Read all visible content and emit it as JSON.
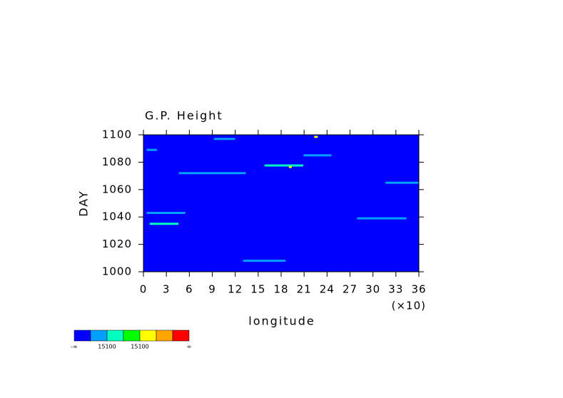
{
  "chart_data": {
    "type": "heatmap",
    "title": "G.P. Height",
    "x_label": "longitude",
    "x_multiplier": "(×10)",
    "y_label": "DAY",
    "background": "#0000ff",
    "xlim": [
      0,
      36
    ],
    "xticks": [
      0,
      3,
      6,
      9,
      12,
      15,
      18,
      21,
      24,
      27,
      30,
      33,
      36
    ],
    "ylim": [
      1000,
      1100
    ],
    "yticks": [
      1000,
      1020,
      1040,
      1060,
      1080,
      1100
    ],
    "colorbar": {
      "colors": [
        "#0000ff",
        "#00a0ff",
        "#00ffc0",
        "#00ff00",
        "#ffff00",
        "#ffa500",
        "#ff0000"
      ],
      "labels": [
        "-∞",
        null,
        "15100",
        null,
        "15100",
        null,
        null,
        "∞"
      ]
    },
    "streaks": [
      {
        "x": [
          15.8,
          20.9
        ],
        "y": 1077.6,
        "color": "#00ffc0"
      },
      {
        "x": [
          4.6,
          13.4
        ],
        "y": 1072,
        "color": "#00a0ff"
      },
      {
        "x": [
          31.6,
          36
        ],
        "y": 1065,
        "color": "#00a0ff"
      },
      {
        "x": [
          27.9,
          34.4
        ],
        "y": 1039,
        "color": "#00a0ff"
      },
      {
        "x": [
          0.8,
          4.6
        ],
        "y": 1035,
        "color": "#00ffc0"
      },
      {
        "x": [
          13,
          18.6
        ],
        "y": 1008,
        "color": "#00a0ff"
      },
      {
        "x": [
          20.9,
          24.6
        ],
        "y": 1085,
        "color": "#00a0ff"
      },
      {
        "x": [
          9.2,
          12
        ],
        "y": 1097,
        "color": "#00a0ff"
      },
      {
        "x": [
          22.3,
          22.8
        ],
        "y": 1098.5,
        "color": "#ffff00"
      },
      {
        "x": [
          19,
          19.4
        ],
        "y": 1076.5,
        "color": "#ffff00"
      },
      {
        "x": [
          0.4,
          1.8
        ],
        "y": 1089,
        "color": "#00a0ff"
      },
      {
        "x": [
          0.4,
          5.5
        ],
        "y": 1043,
        "color": "#00a0ff"
      }
    ]
  }
}
